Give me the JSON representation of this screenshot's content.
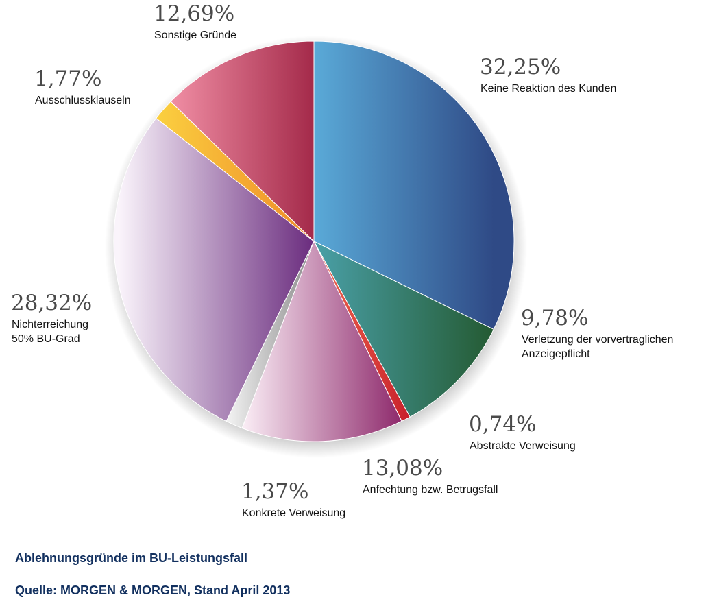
{
  "chart_data": {
    "type": "pie",
    "start_angle_deg": 0,
    "direction": "clockwise",
    "slices": [
      {
        "label": [
          "Keine Reaktion des Kunden"
        ],
        "value": 32.25,
        "display": "32,25%",
        "colors": [
          "#5aaad8",
          "#2f4a86"
        ]
      },
      {
        "label": [
          "Verletzung der vorvertraglichen",
          "Anzeigepflicht"
        ],
        "value": 9.78,
        "display": "9,78%",
        "colors": [
          "#4aa0a8",
          "#245a32"
        ]
      },
      {
        "label": [
          "Abstrakte Verweisung"
        ],
        "value": 0.74,
        "display": "0,74%",
        "colors": [
          "#f06a50",
          "#c8202a"
        ]
      },
      {
        "label": [
          "Anfechtung bzw. Betrugsfall"
        ],
        "value": 13.08,
        "display": "13,08%",
        "colors": [
          "#fbeef6",
          "#8e2a6c"
        ]
      },
      {
        "label": [
          "Konkrete Verweisung"
        ],
        "value": 1.37,
        "display": "1,37%",
        "colors": [
          "#f4f4f4",
          "#8a8a8a"
        ]
      },
      {
        "label": [
          "Nichterreichung",
          "50% BU-Grad"
        ],
        "value": 28.32,
        "display": "28,32%",
        "colors": [
          "#faf4fb",
          "#6a2c7e"
        ]
      },
      {
        "label": [
          "Ausschlussklauseln"
        ],
        "value": 1.77,
        "display": "1,77%",
        "colors": [
          "#fbd040",
          "#ee8a28"
        ]
      },
      {
        "label": [
          "Sonstige Gründe"
        ],
        "value": 12.69,
        "display": "12,69%",
        "colors": [
          "#f08ea4",
          "#a42a4a"
        ]
      }
    ]
  },
  "caption": {
    "title": "Ablehnungsgründe im BU-Leistungsfall",
    "source": "Quelle: MORGEN & MORGEN, Stand April 2013"
  }
}
